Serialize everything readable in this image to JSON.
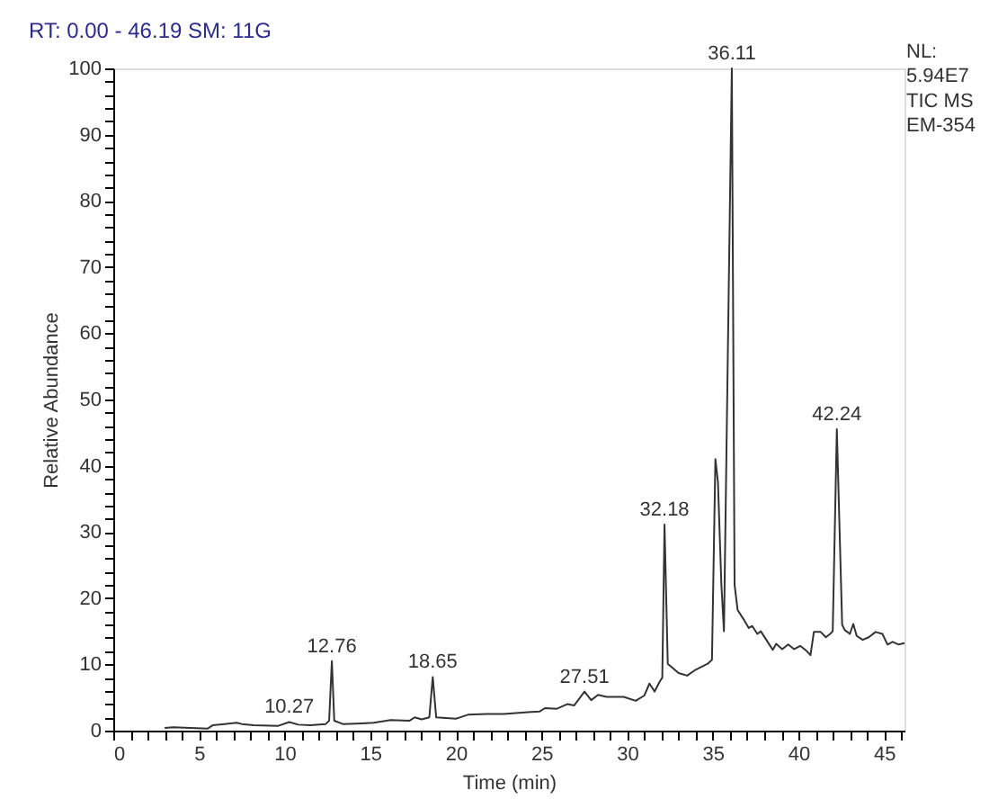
{
  "chart_data": {
    "type": "line",
    "title": "RT: 0.00 - 46.19  SM: 11G",
    "xlabel": "Time (min)",
    "ylabel": "Relative Abundance",
    "x": [
      3.0,
      3.5,
      4.5,
      5.5,
      5.8,
      6.5,
      7.2,
      7.5,
      8.2,
      9.6,
      10.27,
      10.8,
      11.5,
      12.4,
      12.6,
      12.76,
      12.9,
      13.4,
      14.5,
      15.2,
      16.2,
      17.3,
      17.6,
      18.0,
      18.45,
      18.65,
      18.85,
      20.0,
      20.7,
      21.8,
      22.8,
      24.2,
      24.9,
      25.2,
      25.9,
      26.5,
      26.9,
      27.51,
      27.9,
      28.3,
      28.8,
      29.8,
      30.5,
      31.0,
      31.3,
      31.6,
      31.9,
      32.05,
      32.18,
      32.37,
      33.0,
      33.5,
      34.0,
      34.7,
      34.95,
      35.15,
      35.3,
      35.5,
      35.65,
      36.11,
      36.27,
      36.45,
      36.8,
      37.1,
      37.3,
      37.6,
      37.8,
      38.2,
      38.5,
      38.7,
      39.05,
      39.4,
      39.75,
      40.1,
      40.45,
      40.7,
      40.9,
      41.3,
      41.6,
      41.85,
      42.0,
      42.24,
      42.55,
      42.7,
      43.0,
      43.2,
      43.4,
      43.75,
      44.1,
      44.5,
      44.9,
      45.2,
      45.5,
      45.85,
      46.19
    ],
    "series": [
      {
        "color": "#333333",
        "values": [
          0.4,
          0.5,
          0.4,
          0.3,
          0.8,
          1.0,
          1.2,
          1.0,
          0.8,
          0.7,
          1.3,
          0.9,
          0.8,
          1.0,
          1.5,
          10.5,
          1.5,
          1.0,
          1.1,
          1.2,
          1.6,
          1.5,
          2.0,
          1.7,
          2.0,
          8.1,
          2.0,
          1.8,
          2.4,
          2.5,
          2.5,
          2.8,
          2.9,
          3.4,
          3.3,
          4.0,
          3.8,
          5.9,
          4.6,
          5.4,
          5.1,
          5.1,
          4.5,
          5.3,
          7.1,
          5.9,
          7.4,
          8.0,
          31.1,
          10.1,
          8.7,
          8.3,
          9.2,
          10.1,
          10.7,
          41.0,
          37.5,
          22.0,
          15.0,
          100,
          22.0,
          18.2,
          16.8,
          15.5,
          15.8,
          14.6,
          15.0,
          13.4,
          12.2,
          13.1,
          12.3,
          13.0,
          12.3,
          12.8,
          12.1,
          11.4,
          14.9,
          14.9,
          14.1,
          14.6,
          15.0,
          45.5,
          16.0,
          15.2,
          14.6,
          16.1,
          14.3,
          13.7,
          14.1,
          14.9,
          14.6,
          13.0,
          13.4,
          13.0,
          13.2
        ]
      }
    ],
    "xlim": [
      0,
      46.19
    ],
    "ylim": [
      0,
      100
    ],
    "xticks": [
      0,
      {
        "value": 1,
        "label": null
      },
      {
        "value": 2,
        "label": null
      },
      {
        "value": 3,
        "label": null
      },
      {
        "value": 4,
        "label": null
      },
      5,
      {
        "value": 6,
        "label": null
      },
      {
        "value": 7,
        "label": null
      },
      {
        "value": 8,
        "label": null
      },
      {
        "value": 9,
        "label": null
      },
      10,
      {
        "value": 11,
        "label": null
      },
      {
        "value": 12,
        "label": null
      },
      {
        "value": 13,
        "label": null
      },
      {
        "value": 14,
        "label": null
      },
      15,
      {
        "value": 16,
        "label": null
      },
      {
        "value": 17,
        "label": null
      },
      {
        "value": 18,
        "label": null
      },
      {
        "value": 19,
        "label": null
      },
      20,
      {
        "value": 21,
        "label": null
      },
      {
        "value": 22,
        "label": null
      },
      {
        "value": 23,
        "label": null
      },
      {
        "value": 24,
        "label": null
      },
      25,
      {
        "value": 26,
        "label": null
      },
      {
        "value": 27,
        "label": null
      },
      {
        "value": 28,
        "label": null
      },
      {
        "value": 29,
        "label": null
      },
      30,
      {
        "value": 31,
        "label": null
      },
      {
        "value": 32,
        "label": null
      },
      {
        "value": 33,
        "label": null
      },
      {
        "value": 34,
        "label": null
      },
      35,
      {
        "value": 36,
        "label": null
      },
      {
        "value": 37,
        "label": null
      },
      {
        "value": 38,
        "label": null
      },
      {
        "value": 39,
        "label": null
      },
      40,
      {
        "value": 41,
        "label": null
      },
      {
        "value": 42,
        "label": null
      },
      {
        "value": 43,
        "label": null
      },
      {
        "value": 44,
        "label": null
      },
      45,
      {
        "value": 46,
        "label": null
      }
    ],
    "yticks": [
      0,
      {
        "value": 2,
        "label": null
      },
      {
        "value": 4,
        "label": null
      },
      {
        "value": 6,
        "label": null
      },
      {
        "value": 8,
        "label": null
      },
      10,
      {
        "value": 12,
        "label": null
      },
      {
        "value": 14,
        "label": null
      },
      {
        "value": 16,
        "label": null
      },
      {
        "value": 18,
        "label": null
      },
      20,
      {
        "value": 22,
        "label": null
      },
      {
        "value": 24,
        "label": null
      },
      {
        "value": 26,
        "label": null
      },
      {
        "value": 28,
        "label": null
      },
      30,
      {
        "value": 32,
        "label": null
      },
      {
        "value": 34,
        "label": null
      },
      {
        "value": 36,
        "label": null
      },
      {
        "value": 38,
        "label": null
      },
      40,
      {
        "value": 42,
        "label": null
      },
      {
        "value": 44,
        "label": null
      },
      {
        "value": 46,
        "label": null
      },
      {
        "value": 48,
        "label": null
      },
      50,
      {
        "value": 52,
        "label": null
      },
      {
        "value": 54,
        "label": null
      },
      {
        "value": 56,
        "label": null
      },
      {
        "value": 58,
        "label": null
      },
      60,
      {
        "value": 62,
        "label": null
      },
      {
        "value": 64,
        "label": null
      },
      {
        "value": 66,
        "label": null
      },
      {
        "value": 68,
        "label": null
      },
      70,
      {
        "value": 72,
        "label": null
      },
      {
        "value": 74,
        "label": null
      },
      {
        "value": 76,
        "label": null
      },
      {
        "value": 78,
        "label": null
      },
      80,
      {
        "value": 82,
        "label": null
      },
      {
        "value": 84,
        "label": null
      },
      {
        "value": 86,
        "label": null
      },
      {
        "value": 88,
        "label": null
      },
      90,
      {
        "value": 92,
        "label": null
      },
      {
        "value": 94,
        "label": null
      },
      {
        "value": 96,
        "label": null
      },
      {
        "value": 98,
        "label": null
      },
      100
    ],
    "annotations": [
      {
        "text": "10.27",
        "x": 10.27,
        "y": 1.3
      },
      {
        "text": "12.76",
        "x": 12.76,
        "y": 10.5
      },
      {
        "text": "18.65",
        "x": 18.65,
        "y": 8.1
      },
      {
        "text": "27.51",
        "x": 27.51,
        "y": 5.9
      },
      {
        "text": "32.18",
        "x": 32.18,
        "y": 31.1
      },
      {
        "text": "36.11",
        "x": 36.11,
        "y": 100
      },
      {
        "text": "42.24",
        "x": 42.24,
        "y": 45.5
      },
      "NL:",
      "5.94E7",
      "TIC MS",
      "EM-354"
    ]
  }
}
